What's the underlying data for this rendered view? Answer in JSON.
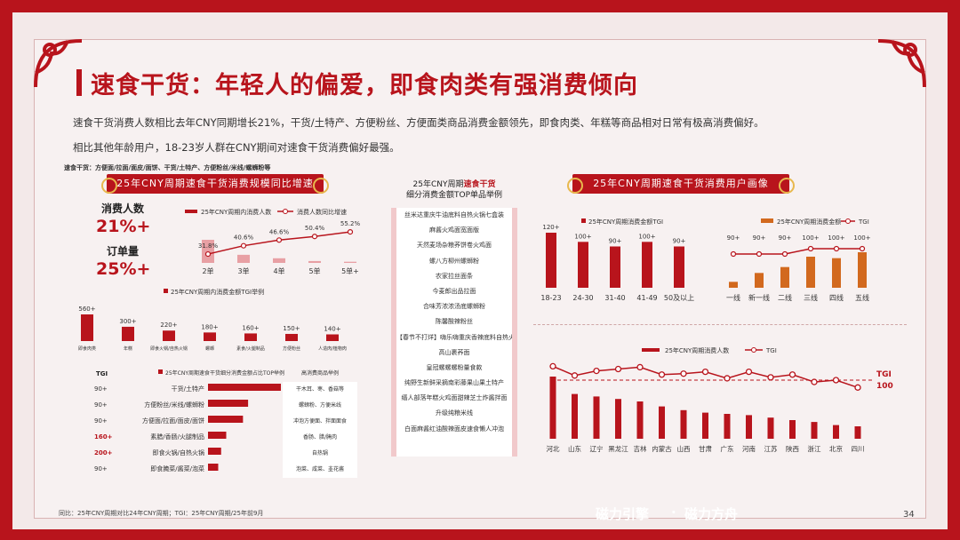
{
  "title": "速食干货：年轻人的偏爱，即食肉类有强消费倾向",
  "intro": [
    "速食干货消费人数相比去年CNY同期增长21%，干货/土特产、方便粉丝、方便面类商品消费金额领先，即食肉类、年糕等商品相对日常有极高消费偏好。",
    "相比其他年龄用户，18-23岁人群在CNY期间对速食干货消费偏好最强。"
  ],
  "scope_note": "速食干货：方便面/拉面/面皮/面饼、干货/土特产、方便粉丝/米线/螺蛳粉等",
  "left_panel": {
    "ribbon": "25年CNY周期速食干货消费规模同比增速",
    "kpis": [
      {
        "label": "消费人数",
        "value": "21%+"
      },
      {
        "label": "订单量",
        "value": "25%+"
      }
    ]
  },
  "middle_panel": {
    "title_prefix": "25年CNY周期",
    "title_highlight": "速食干货",
    "title_line2": "细分消费金额TOP单品举例",
    "items": [
      "丝米达重庆牛油底料自热火锅七盒装",
      "麻酱火鸡面宽面版",
      "天然麦场杂粮荞饼卷火鸡面",
      "螺八方柳州螺蛳粉",
      "农家拉丝面条",
      "今麦郎出品拉面",
      "合味芳浓浓汤底螺蛳粉",
      "陈馨酸辣粉丝",
      "【春节不打烊】嗨乐嗨重庆香辣底料自热火锅",
      "高山裹荞面",
      "皇冠螺螺螺粉量食款",
      "纯野生新鲜采摘南彩藤果山果土特产",
      "缙人部落年糕火鸡面甜辣芝士炸酱拌面",
      "升级纯粮米线",
      "白面麻酱红油酸辣面皮速食懒人冲泡"
    ]
  },
  "right_panel": {
    "ribbon": "25年CNY周期速食干货消费用户画像",
    "tgi_line_label": "TGI",
    "tgi_line_value": "100"
  },
  "chart_data": [
    {
      "type": "bar",
      "name": "growth",
      "categories": [
        "2单",
        "3单",
        "4单",
        "5单",
        "5单+"
      ],
      "series": [
        {
          "name": "25年CNY周期内消费人数",
          "values": [
            1.0,
            0.35,
            0.2,
            0.08,
            0.05
          ]
        },
        {
          "name": "消费人数同比增速",
          "values": [
            31.8,
            40.6,
            46.6,
            50.4,
            55.2
          ]
        }
      ],
      "data_labels": [
        "31.8%",
        "40.6%",
        "46.6%",
        "50.4%",
        "55.2%"
      ]
    },
    {
      "type": "bar",
      "name": "spend_tgi",
      "title": "25年CNY周期内消费金额TGI举例",
      "categories": [
        "即食肉类",
        "年糕",
        "即食火锅/自热火锅",
        "螺蛳",
        "素食/火腿制品",
        "方便粉丝",
        "人造肉/植物肉"
      ],
      "values": [
        560,
        300,
        220,
        180,
        160,
        150,
        140
      ],
      "data_labels": [
        "560+",
        "300+",
        "220+",
        "180+",
        "160+",
        "150+",
        "140+"
      ]
    },
    {
      "type": "bar",
      "name": "category_top",
      "title": "25年CNY周期速食干货细分消费金额占比TOP举例",
      "tgi_header": "TGI",
      "notes_header": "高消费商品举例",
      "categories": [
        "干货/土特产",
        "方便粉丝/米线/螺蛳粉",
        "方便面/拉面/面皮/面饼",
        "素腊/香肠/火腿制品",
        "即食火锅/自热火锅",
        "即食腌菜/酱菜/泡菜"
      ],
      "values": [
        100,
        55,
        48,
        25,
        18,
        14
      ],
      "tgi": [
        "90+",
        "90+",
        "90+",
        "160+",
        "200+",
        "90+"
      ],
      "notes": [
        "干木耳、枣、香菇等",
        "螺蛳粉、方便米线",
        "冲泡方便面、拌面面食",
        "香肠、腊/腌肉",
        "自热锅",
        "泡菜、咸菜、韭花酱"
      ]
    },
    {
      "type": "bar",
      "name": "age_tgi",
      "categories": [
        "18-23",
        "24-30",
        "31-40",
        "41-49",
        "50及以上"
      ],
      "series": [
        {
          "name": "25年CNY周期消费金额TGI",
          "values": [
            120,
            100,
            90,
            100,
            90
          ]
        }
      ],
      "data_labels": [
        "120+",
        "100+",
        "90+",
        "100+",
        "90+"
      ]
    },
    {
      "type": "bar",
      "name": "city_tier",
      "categories": [
        "一线",
        "新一线",
        "二线",
        "三线",
        "四线",
        "五线"
      ],
      "series": [
        {
          "name": "25年CNY周期消费金额",
          "values": [
            8,
            20,
            28,
            42,
            40,
            48
          ]
        },
        {
          "name": "TGI",
          "values": [
            90,
            90,
            90,
            100,
            100,
            100
          ]
        }
      ],
      "data_labels": [
        "90+",
        "90+",
        "90+",
        "100+",
        "100+",
        "100+"
      ]
    },
    {
      "type": "bar",
      "name": "province",
      "categories": [
        "河北",
        "山东",
        "辽宁",
        "黑龙江",
        "吉林",
        "内蒙古",
        "山西",
        "甘肃",
        "广东",
        "河南",
        "江苏",
        "陕西",
        "浙江",
        "北京",
        "四川"
      ],
      "series": [
        {
          "name": "25年CNY周期消费人数",
          "values": [
            100,
            72,
            68,
            64,
            60,
            52,
            46,
            42,
            40,
            38,
            34,
            30,
            27,
            22,
            20
          ]
        },
        {
          "name": "TGI",
          "values": [
            130,
            110,
            120,
            124,
            128,
            112,
            114,
            118,
            104,
            118,
            106,
            112,
            96,
            100,
            84
          ]
        }
      ]
    }
  ],
  "footer": {
    "note": "同比：25年CNY周期对比24年CNY周期；TGI：25年CNY周期/25年前9月",
    "brand1": "磁力引擎",
    "brand_sep": "·",
    "brand2": "磁力方舟",
    "page": "34"
  }
}
